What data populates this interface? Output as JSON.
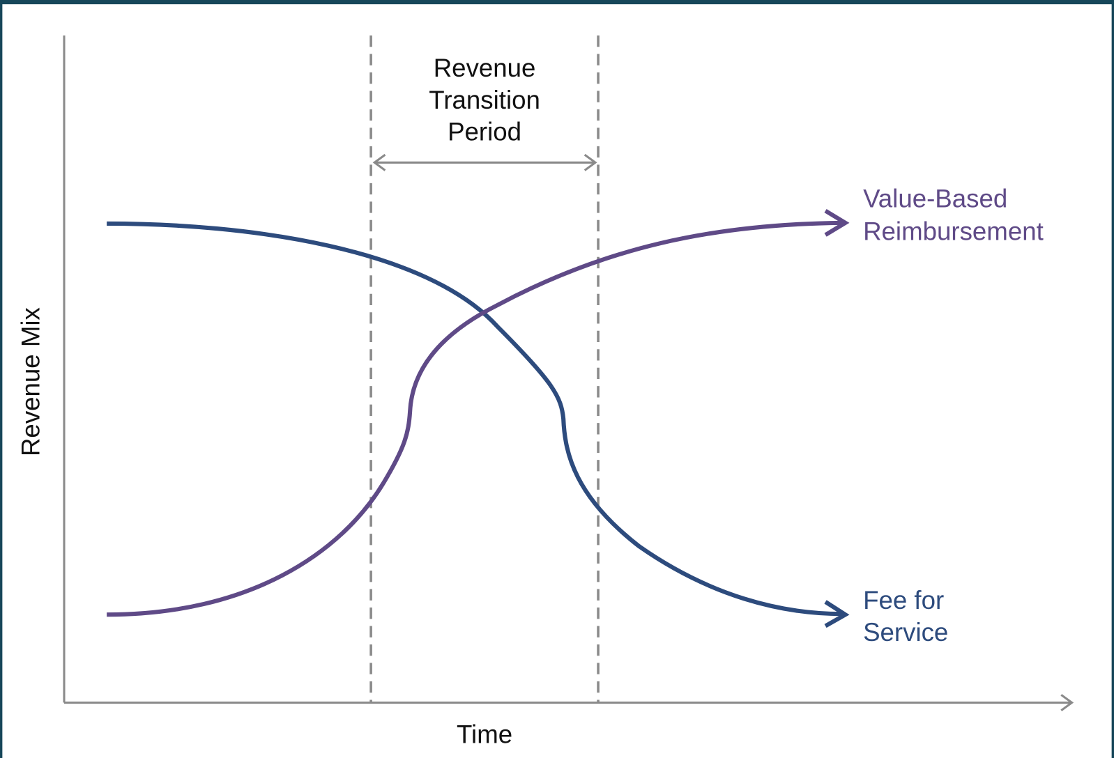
{
  "transition_label": [
    "Revenue",
    "Transition",
    "Period"
  ],
  "value_based_label": [
    "Value-Based",
    "Reimbursement"
  ],
  "fee_label": [
    "Fee for",
    "Service"
  ],
  "y_axis_label": "Revenue Mix",
  "x_axis_label": "Time"
}
